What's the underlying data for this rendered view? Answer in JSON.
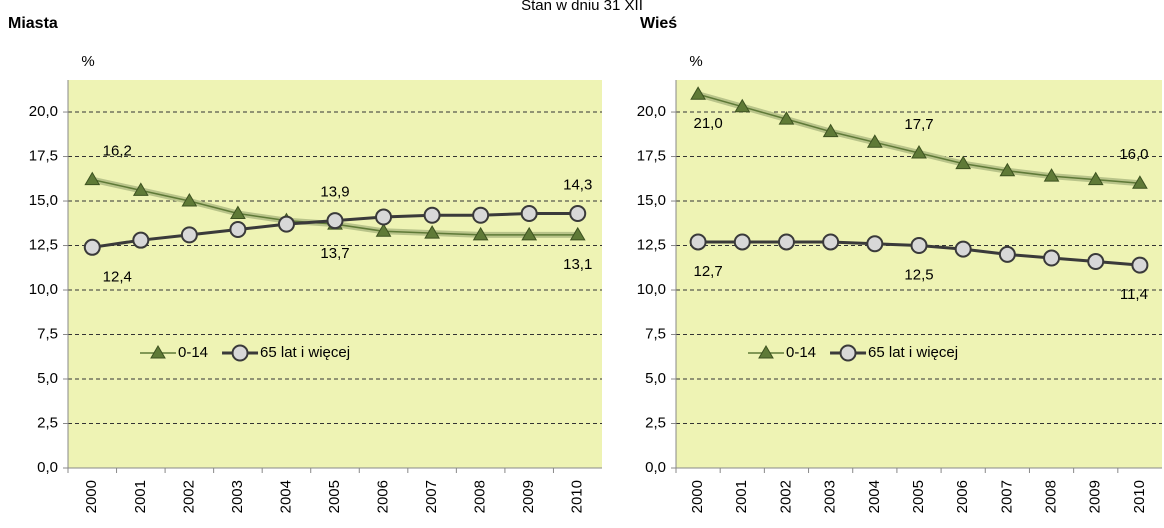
{
  "title": "Stan w dniu 31 XII",
  "chart_data": [
    {
      "type": "line",
      "title": "Miasta",
      "y_label": "%",
      "categories": [
        "2000",
        "2001",
        "2002",
        "2003",
        "2004",
        "2005",
        "2006",
        "2007",
        "2008",
        "2009",
        "2010"
      ],
      "series": [
        {
          "name": "0-14",
          "color": "#5f7a37",
          "marker": "triangle",
          "values": [
            16.2,
            15.6,
            15.0,
            14.3,
            13.9,
            13.7,
            13.3,
            13.2,
            13.1,
            13.1,
            13.1
          ],
          "value_labels": [
            "16,2",
            null,
            null,
            null,
            null,
            "13,7",
            null,
            null,
            null,
            null,
            "13,1"
          ]
        },
        {
          "name": "65 lat i więcej",
          "color": "#3a3a3a",
          "marker": "circle",
          "values": [
            12.4,
            12.8,
            13.1,
            13.4,
            13.7,
            13.9,
            14.1,
            14.2,
            14.2,
            14.3,
            14.3
          ],
          "value_labels": [
            "12,4",
            null,
            null,
            null,
            null,
            "13,9",
            null,
            null,
            null,
            null,
            "14,3"
          ]
        }
      ],
      "ylim": [
        0,
        21.8
      ],
      "yticks": [
        {
          "value": 0,
          "label": "0,0"
        },
        {
          "value": 2.5,
          "label": "2,5"
        },
        {
          "value": 5,
          "label": "5,0"
        },
        {
          "value": 7.5,
          "label": "7,5"
        },
        {
          "value": 10,
          "label": "10,0"
        },
        {
          "value": 12.5,
          "label": "12,5"
        },
        {
          "value": 15,
          "label": "15,0"
        },
        {
          "value": 17.5,
          "label": "17,5"
        },
        {
          "value": 20,
          "label": "20,0"
        }
      ],
      "grid": true,
      "legend": "left",
      "background": "#eef3b4"
    },
    {
      "type": "line",
      "title": "Wieś",
      "y_label": "%",
      "categories": [
        "2000",
        "2001",
        "2002",
        "2003",
        "2004",
        "2005",
        "2006",
        "2007",
        "2008",
        "2009",
        "2010"
      ],
      "series": [
        {
          "name": "0-14",
          "color": "#5f7a37",
          "marker": "triangle",
          "values": [
            21.0,
            20.3,
            19.6,
            18.9,
            18.3,
            17.7,
            17.1,
            16.7,
            16.4,
            16.2,
            16.0
          ],
          "value_labels": [
            "21,0",
            null,
            null,
            null,
            null,
            "17,7",
            null,
            null,
            null,
            null,
            "16,0"
          ]
        },
        {
          "name": "65 lat i więcej",
          "color": "#3a3a3a",
          "marker": "circle",
          "values": [
            12.7,
            12.7,
            12.7,
            12.7,
            12.6,
            12.5,
            12.3,
            12.0,
            11.8,
            11.6,
            11.4
          ],
          "value_labels": [
            "12,7",
            null,
            null,
            null,
            null,
            "12,5",
            null,
            null,
            null,
            null,
            "11,4"
          ]
        }
      ],
      "ylim": [
        0,
        21.8
      ],
      "yticks": [
        {
          "value": 0,
          "label": "0,0"
        },
        {
          "value": 2.5,
          "label": "2,5"
        },
        {
          "value": 5,
          "label": "5,0"
        },
        {
          "value": 7.5,
          "label": "7,5"
        },
        {
          "value": 10,
          "label": "10,0"
        },
        {
          "value": 12.5,
          "label": "12,5"
        },
        {
          "value": 15,
          "label": "15,0"
        },
        {
          "value": 17.5,
          "label": "17,5"
        },
        {
          "value": 20,
          "label": "20,0"
        }
      ],
      "grid": true,
      "legend": "left",
      "background": "#eef3b4"
    }
  ]
}
